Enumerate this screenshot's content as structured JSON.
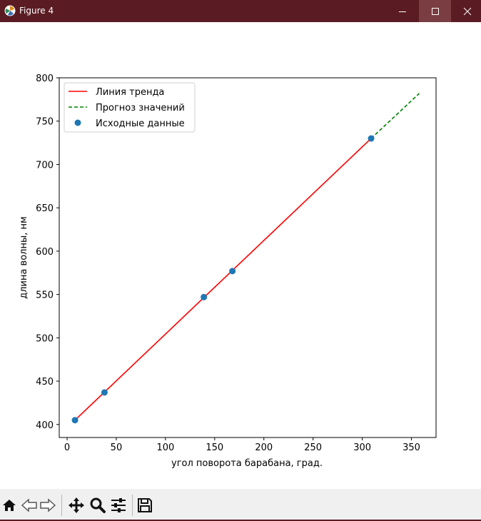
{
  "window": {
    "title": "Figure 4",
    "icon": "matplotlib-icon",
    "controls": [
      "minimize-icon",
      "maximize-icon",
      "close-icon"
    ]
  },
  "toolbar": {
    "tools": [
      "home-icon",
      "back-arrow-icon",
      "forward-arrow-icon",
      "pan-move-icon",
      "zoom-magnifier-icon",
      "configure-subplots-icon",
      "save-floppy-icon"
    ]
  },
  "chart_data": {
    "type": "line",
    "title": "",
    "xlabel": "угол поворота барабана, град.",
    "ylabel": "длина волны, нм",
    "xlim": [
      -8,
      375
    ],
    "ylim": [
      385,
      800
    ],
    "xticks": [
      0,
      50,
      100,
      150,
      200,
      250,
      300,
      350
    ],
    "yticks": [
      400,
      450,
      500,
      550,
      600,
      650,
      700,
      750,
      800
    ],
    "grid": false,
    "legend_position": "upper-left",
    "series": [
      {
        "name": "Линия тренда",
        "kind": "line",
        "style": "solid",
        "color": "#ff0000",
        "x": [
          8,
          309
        ],
        "y": [
          405,
          730
        ]
      },
      {
        "name": "Прогноз значений",
        "kind": "line",
        "style": "dashed",
        "color": "#008000",
        "x": [
          309,
          358
        ],
        "y": [
          730,
          782
        ]
      },
      {
        "name": "Исходные данные",
        "kind": "scatter",
        "color": "#1f77b4",
        "x": [
          8,
          38,
          139,
          168,
          309
        ],
        "y": [
          405,
          437,
          547,
          577,
          730
        ]
      }
    ]
  }
}
